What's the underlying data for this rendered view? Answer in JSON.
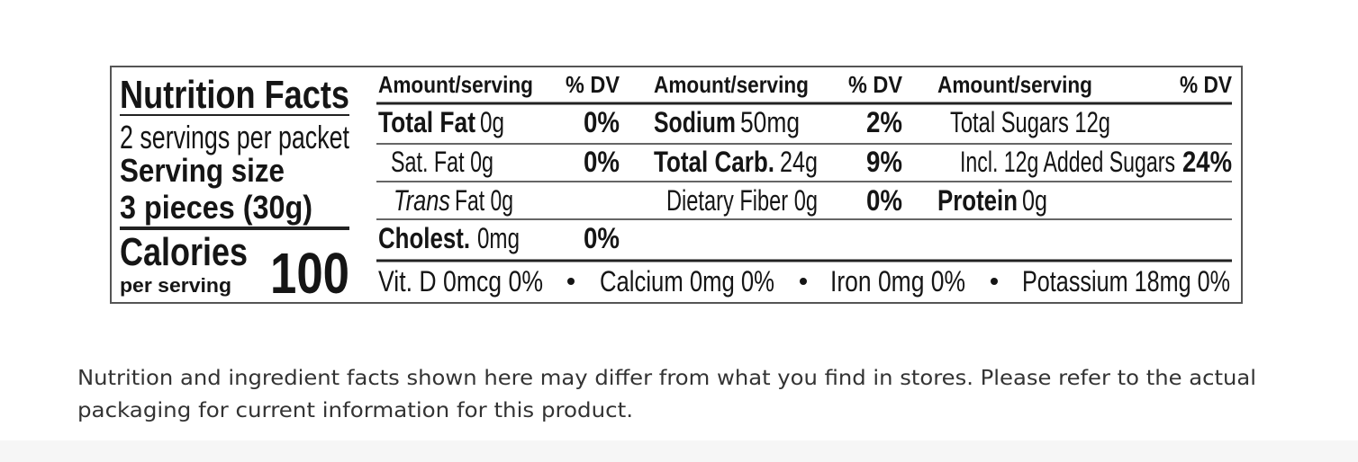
{
  "header": {
    "title": "Nutrition Facts",
    "servings": "2 servings per packet",
    "serving_size_label": "Serving size",
    "serving_size": "3 pieces (30g)",
    "calories_label": "Calories",
    "calories_sub": "per serving",
    "calories": "100"
  },
  "table": {
    "headers": [
      {
        "amount": "Amount/serving",
        "dv": "% DV"
      },
      {
        "amount": "Amount/serving",
        "dv": "% DV"
      },
      {
        "amount": "Amount/serving",
        "dv": "% DV"
      }
    ],
    "columns": [
      {
        "rows": [
          {
            "name": "Total Fat",
            "amount": "0g",
            "dv": "0%"
          },
          {
            "name": "Sat. Fat 0g",
            "dv": "0%"
          },
          {
            "prefix": "Trans",
            "name": "Fat 0g"
          },
          {
            "name": "Cholest.",
            "amount": "0mg",
            "dv": "0%"
          }
        ]
      },
      {
        "rows": [
          {
            "name": "Sodium",
            "amount": "50mg",
            "dv": "2%"
          },
          {
            "name": "Total Carb.",
            "amount": "24g",
            "dv": "9%"
          },
          {
            "name": "Dietary Fiber 0g",
            "dv": "0%"
          }
        ]
      },
      {
        "rows": [
          {
            "name": "Total Sugars 12g"
          },
          {
            "name": "Incl. 12g Added Sugars",
            "dv": "24%"
          },
          {
            "name": "Protein",
            "amount": "0g"
          }
        ]
      }
    ]
  },
  "vitamins": [
    "Vit. D 0mcg 0%",
    "Calcium 0mg 0%",
    "Iron 0mg 0%",
    "Potassium 18mg 0%"
  ],
  "disclaimer": [
    "Nutrition and ingredient facts shown here may differ from what you find in stores. Please refer to the actual",
    "packaging for current information for this product."
  ]
}
